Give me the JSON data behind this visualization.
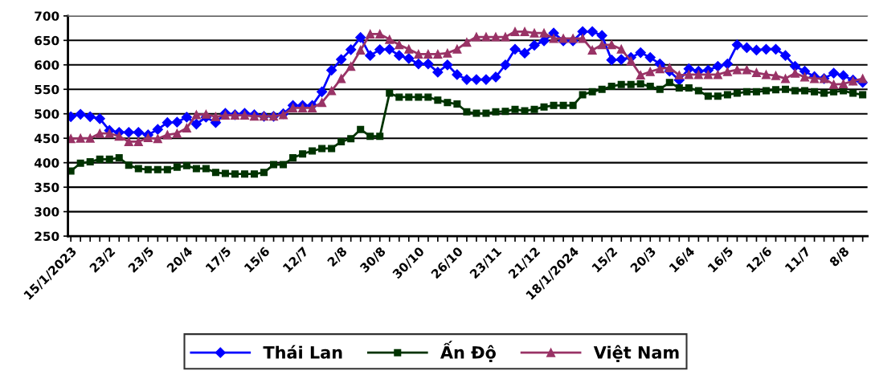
{
  "chart_data": {
    "type": "line",
    "categories": [
      "15/1/2023",
      null,
      null,
      null,
      "23/2",
      null,
      null,
      null,
      "23/5",
      null,
      null,
      null,
      "20/4",
      null,
      null,
      null,
      "17/5",
      null,
      null,
      null,
      "15/6",
      null,
      null,
      null,
      "12/7",
      null,
      null,
      null,
      "2/8",
      null,
      null,
      null,
      "30/8",
      null,
      null,
      null,
      "30/10",
      null,
      null,
      null,
      "26/10",
      null,
      null,
      null,
      "23/11",
      null,
      null,
      null,
      "21/12",
      null,
      null,
      null,
      "18/1/2024",
      null,
      null,
      null,
      "15/2",
      null,
      null,
      null,
      "20/3",
      null,
      null,
      null,
      "16/4",
      null,
      null,
      null,
      "16/5",
      null,
      null,
      null,
      "12/6",
      null,
      null,
      null,
      "11/7",
      null,
      null,
      null,
      "8/8",
      null,
      null
    ],
    "series": [
      {
        "name": "Thái Lan",
        "color": "#0000ff",
        "marker": "diamond",
        "values": [
          494,
          499,
          494,
          490,
          466,
          462,
          462,
          462,
          457,
          468,
          482,
          483,
          493,
          479,
          493,
          482,
          501,
          498,
          501,
          498,
          495,
          495,
          500,
          517,
          517,
          517,
          545,
          589,
          611,
          631,
          656,
          619,
          631,
          632,
          619,
          613,
          602,
          602,
          585,
          600,
          580,
          570,
          570,
          570,
          575,
          600,
          632,
          624,
          640,
          649,
          665,
          649,
          649,
          668,
          668,
          660,
          610,
          611,
          615,
          625,
          615,
          602,
          587,
          569,
          592,
          587,
          589,
          597,
          602,
          641,
          635,
          630,
          632,
          632,
          619,
          597,
          587,
          576,
          572,
          583,
          578,
          569,
          564
        ]
      },
      {
        "name": "Ấn Độ",
        "color": "#003300",
        "marker": "square",
        "values": [
          383,
          399,
          402,
          407,
          407,
          410,
          395,
          388,
          386,
          386,
          386,
          391,
          394,
          388,
          388,
          380,
          378,
          377,
          377,
          377,
          380,
          396,
          396,
          410,
          418,
          424,
          429,
          429,
          443,
          449,
          468,
          454,
          454,
          542,
          534,
          534,
          534,
          534,
          528,
          523,
          520,
          504,
          501,
          501,
          504,
          505,
          509,
          506,
          509,
          514,
          517,
          517,
          517,
          539,
          545,
          550,
          556,
          560,
          560,
          561,
          556,
          550,
          564,
          553,
          553,
          547,
          536,
          536,
          539,
          542,
          545,
          545,
          547,
          549,
          550,
          547,
          547,
          545,
          542,
          545,
          547,
          542,
          539
        ]
      },
      {
        "name": "Việt Nam",
        "color": "#993366",
        "marker": "triangle",
        "values": [
          449,
          450,
          450,
          460,
          460,
          454,
          443,
          443,
          451,
          449,
          457,
          460,
          471,
          498,
          499,
          494,
          497,
          497,
          497,
          495,
          495,
          495,
          498,
          512,
          512,
          512,
          523,
          547,
          572,
          597,
          630,
          663,
          663,
          652,
          641,
          632,
          622,
          622,
          622,
          624,
          632,
          646,
          657,
          657,
          657,
          657,
          668,
          668,
          665,
          665,
          654,
          654,
          654,
          654,
          630,
          641,
          641,
          632,
          608,
          579,
          586,
          592,
          594,
          579,
          580,
          580,
          580,
          580,
          586,
          590,
          590,
          584,
          580,
          578,
          572,
          583,
          575,
          572,
          572,
          560,
          561,
          567,
          572
        ]
      }
    ],
    "ylim": [
      250,
      700
    ],
    "yticks": [
      250,
      300,
      350,
      400,
      450,
      500,
      550,
      600,
      650,
      700
    ],
    "grid": "y",
    "legend": "bottom",
    "line_style": "solid"
  }
}
